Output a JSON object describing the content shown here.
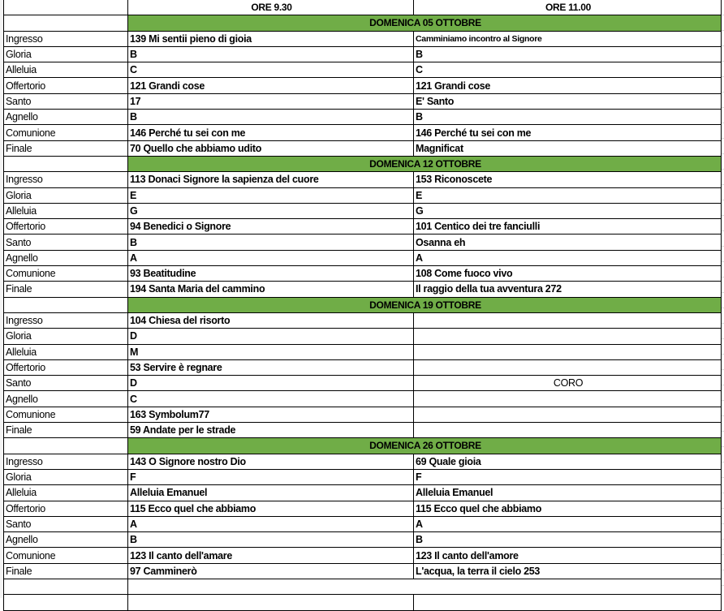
{
  "header": {
    "col1": "",
    "col2": "ORE 9.30",
    "col3": "ORE 11.00"
  },
  "colors": {
    "section_green": "#70ad47"
  },
  "weeks": [
    {
      "title": "DOMENICA 05 OTTOBRE",
      "rows": [
        {
          "label": "Ingresso",
          "ore930": "139 Mi sentii pieno di gioia",
          "ore1100": "Camminiamo incontro al Signore"
        },
        {
          "label": "Gloria",
          "ore930": "B",
          "ore1100": "B"
        },
        {
          "label": "Alleluia",
          "ore930": "C",
          "ore1100": "C"
        },
        {
          "label": "Offertorio",
          "ore930": "121 Grandi cose",
          "ore1100": "121 Grandi cose"
        },
        {
          "label": "Santo",
          "ore930": "17",
          "ore1100": "E' Santo"
        },
        {
          "label": "Agnello",
          "ore930": "B",
          "ore1100": "B"
        },
        {
          "label": "Comunione",
          "ore930": "146 Perché tu sei con me",
          "ore1100": "146 Perché tu sei con me"
        },
        {
          "label": "Finale",
          "ore930": "70 Quello che abbiamo udito",
          "ore1100": "Magnificat"
        }
      ]
    },
    {
      "title": "DOMENICA  12 OTTOBRE",
      "rows": [
        {
          "label": "Ingresso",
          "ore930": "113 Donaci Signore la sapienza del cuore",
          "ore1100": "153 Riconoscete"
        },
        {
          "label": "Gloria",
          "ore930": "E",
          "ore1100": "E"
        },
        {
          "label": "Alleluia",
          "ore930": "G",
          "ore1100": "G"
        },
        {
          "label": "Offertorio",
          "ore930": "94 Benedici o Signore",
          "ore1100": "101 Centico dei tre fanciulli"
        },
        {
          "label": "Santo",
          "ore930": "B",
          "ore1100": "Osanna eh"
        },
        {
          "label": "Agnello",
          "ore930": "A",
          "ore1100": "A"
        },
        {
          "label": "Comunione",
          "ore930": "93 Beatitudine",
          "ore1100": "108 Come fuoco vivo"
        },
        {
          "label": "Finale",
          "ore930": "194 Santa Maria del cammino",
          "ore1100": "Il raggio della tua avventura 272"
        }
      ]
    },
    {
      "title": "DOMENICA  19 OTTOBRE",
      "rows": [
        {
          "label": "Ingresso",
          "ore930": "104 Chiesa del risorto",
          "ore1100": ""
        },
        {
          "label": "Gloria",
          "ore930": "D",
          "ore1100": ""
        },
        {
          "label": "Alleluia",
          "ore930": "M",
          "ore1100": ""
        },
        {
          "label": "Offertorio",
          "ore930": "53 Servire è regnare",
          "ore1100": ""
        },
        {
          "label": "Santo",
          "ore930": "D",
          "ore1100": "CORO"
        },
        {
          "label": "Agnello",
          "ore930": "C",
          "ore1100": ""
        },
        {
          "label": "Comunione",
          "ore930": "163 Symbolum77",
          "ore1100": ""
        },
        {
          "label": "Finale",
          "ore930": "59 Andate per le strade",
          "ore1100": ""
        }
      ]
    },
    {
      "title": "DOMENICA 26 OTTOBRE",
      "rows": [
        {
          "label": "Ingresso",
          "ore930": "143 O Signore nostro Dio",
          "ore1100": "69 Quale gioia"
        },
        {
          "label": "Gloria",
          "ore930": "F",
          "ore1100": "F"
        },
        {
          "label": "Alleluia",
          "ore930": "Alleluia Emanuel",
          "ore1100": "Alleluia Emanuel"
        },
        {
          "label": "Offertorio",
          "ore930": "115 Ecco quel che abbiamo",
          "ore1100": "115 Ecco quel che abbiamo"
        },
        {
          "label": "Santo",
          "ore930": "A",
          "ore1100": "A"
        },
        {
          "label": "Agnello",
          "ore930": "B",
          "ore1100": "B"
        },
        {
          "label": "Comunione",
          "ore930": "123 Il canto dell'amare",
          "ore1100": "123 Il canto dell'amore"
        },
        {
          "label": "Finale",
          "ore930": "97 Camminerò",
          "ore1100": "L'acqua, la terra il cielo 253"
        }
      ]
    }
  ]
}
